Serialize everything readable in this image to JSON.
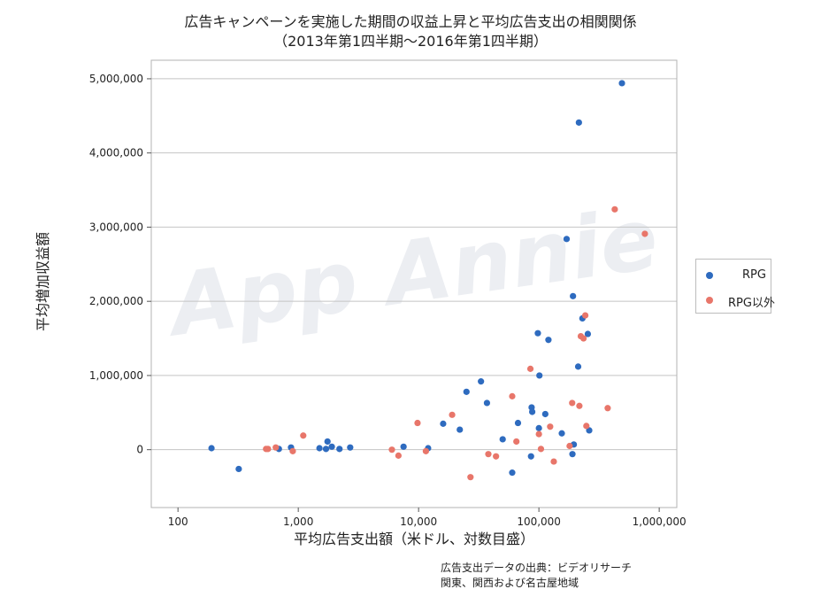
{
  "title_line1": "広告キャンペーンを実施した期間の収益上昇と平均広告支出の相関関係",
  "title_line2": "（2013年第1四半期〜2016年第1四半期）",
  "watermark": "App Annie",
  "source_line1": "広告支出データの出典：ビデオリサーチ",
  "source_line2": "関東、関西および名古屋地域",
  "chart_data": {
    "type": "scatter",
    "xlabel": "平均広告支出額（米ドル、対数目盛）",
    "ylabel": "平均増加収益額",
    "x_scale": "log",
    "xlim": [
      60,
      1400000
    ],
    "ylim": [
      -780000,
      5250000
    ],
    "x_ticks": [
      100,
      1000,
      10000,
      100000,
      1000000
    ],
    "x_tick_labels": [
      "100",
      "1,000",
      "10,000",
      "100,000",
      "1,000,000"
    ],
    "y_ticks": [
      0,
      1000000,
      2000000,
      3000000,
      4000000,
      5000000
    ],
    "y_tick_labels": [
      "0",
      "1,000,000",
      "2,000,000",
      "3,000,000",
      "4,000,000",
      "5,000,000"
    ],
    "grid": "horizontal",
    "legend_position": "right",
    "series": [
      {
        "name": "RPG",
        "color": "#2e6bbf",
        "points": [
          [
            190,
            20000
          ],
          [
            320,
            -260000
          ],
          [
            690,
            10000
          ],
          [
            870,
            30000
          ],
          [
            1500,
            20000
          ],
          [
            1700,
            10000
          ],
          [
            1750,
            110000
          ],
          [
            1900,
            40000
          ],
          [
            2200,
            10000
          ],
          [
            2700,
            30000
          ],
          [
            7500,
            40000
          ],
          [
            12000,
            20000
          ],
          [
            16000,
            350000
          ],
          [
            22000,
            270000
          ],
          [
            25000,
            780000
          ],
          [
            33000,
            920000
          ],
          [
            37000,
            630000
          ],
          [
            50000,
            140000
          ],
          [
            60000,
            -310000
          ],
          [
            67000,
            360000
          ],
          [
            87000,
            570000
          ],
          [
            88000,
            510000
          ],
          [
            86000,
            -90000
          ],
          [
            98000,
            1570000
          ],
          [
            101000,
            1000000
          ],
          [
            100000,
            290000
          ],
          [
            113000,
            480000
          ],
          [
            120000,
            1480000
          ],
          [
            155000,
            220000
          ],
          [
            170000,
            2840000
          ],
          [
            192000,
            2070000
          ],
          [
            195000,
            70000
          ],
          [
            190000,
            -60000
          ],
          [
            212000,
            1120000
          ],
          [
            215000,
            4410000
          ],
          [
            230000,
            1770000
          ],
          [
            255000,
            1560000
          ],
          [
            262000,
            260000
          ],
          [
            490000,
            4940000
          ]
        ]
      },
      {
        "name": "RPG以外",
        "color": "#e8766a",
        "points": [
          [
            540,
            10000
          ],
          [
            560,
            10000
          ],
          [
            650,
            30000
          ],
          [
            900,
            -20000
          ],
          [
            1100,
            190000
          ],
          [
            6000,
            0
          ],
          [
            6800,
            -80000
          ],
          [
            9800,
            360000
          ],
          [
            11500,
            -20000
          ],
          [
            19000,
            470000
          ],
          [
            27000,
            -370000
          ],
          [
            38000,
            -60000
          ],
          [
            44000,
            -90000
          ],
          [
            60000,
            720000
          ],
          [
            65000,
            110000
          ],
          [
            85000,
            1090000
          ],
          [
            100000,
            210000
          ],
          [
            104000,
            10000
          ],
          [
            124000,
            310000
          ],
          [
            133000,
            -160000
          ],
          [
            180000,
            50000
          ],
          [
            189000,
            630000
          ],
          [
            217000,
            590000
          ],
          [
            223000,
            1530000
          ],
          [
            235000,
            1500000
          ],
          [
            243000,
            1810000
          ],
          [
            248000,
            320000
          ],
          [
            373000,
            560000
          ],
          [
            427000,
            3240000
          ],
          [
            760000,
            2910000
          ]
        ]
      }
    ]
  }
}
